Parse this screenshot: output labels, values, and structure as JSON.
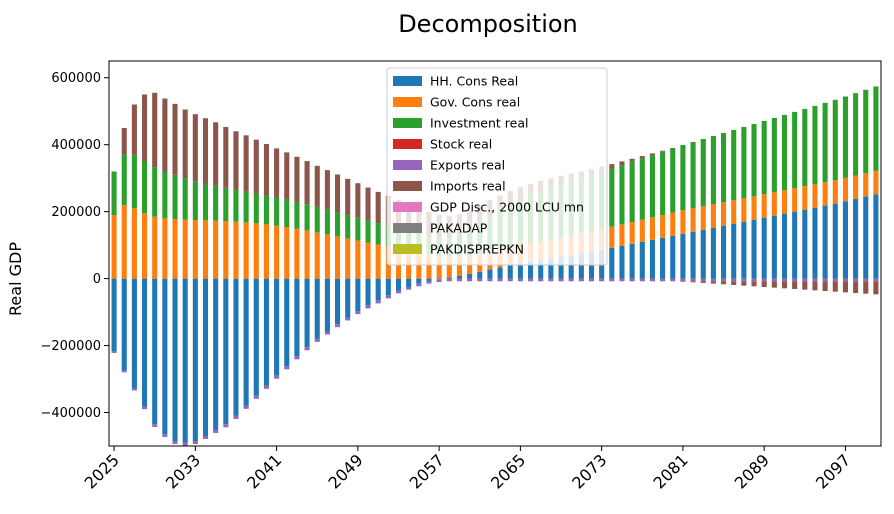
{
  "chart_data": {
    "type": "bar",
    "stacked": true,
    "title": "Decomposition",
    "xlabel": "",
    "ylabel": "Real GDP",
    "ylim": [
      -500000,
      650000
    ],
    "yticks": [
      -400000,
      -200000,
      0,
      200000,
      400000,
      600000
    ],
    "ytick_labels": [
      "−400000",
      "−200000",
      "0",
      "200000",
      "400000",
      "600000"
    ],
    "x_start": 2025,
    "x_end": 2100,
    "xticks": [
      2025,
      2033,
      2041,
      2049,
      2057,
      2065,
      2073,
      2081,
      2089,
      2097
    ],
    "legend_position": "upper-center",
    "series": [
      {
        "name": "HH. Cons Real",
        "color": "#1f77b4",
        "values": [
          -218000,
          -275000,
          -328000,
          -383000,
          -435000,
          -465000,
          -485000,
          -490000,
          -485000,
          -470000,
          -452000,
          -435000,
          -410000,
          -380000,
          -350000,
          -320000,
          -290000,
          -262000,
          -232000,
          -205000,
          -180000,
          -158000,
          -136000,
          -116000,
          -97000,
          -80000,
          -65000,
          -50000,
          -36000,
          -25000,
          -15000,
          -7000,
          -2000,
          3000,
          8000,
          14000,
          20000,
          27000,
          33000,
          39000,
          45000,
          50000,
          55000,
          60000,
          65000,
          70000,
          75000,
          80000,
          86000,
          92000,
          98000,
          104000,
          110000,
          116000,
          122000,
          128000,
          134000,
          140000,
          146000,
          152000,
          158000,
          164000,
          170000,
          176000,
          182000,
          188000,
          194000,
          200000,
          206000,
          212000,
          218000,
          224000,
          231000,
          238000,
          245000,
          252000
        ]
      },
      {
        "name": "Gov. Cons real",
        "color": "#ff7f0e",
        "values": [
          190000,
          220000,
          210000,
          195000,
          185000,
          180000,
          178000,
          176000,
          175000,
          174000,
          173000,
          172000,
          170000,
          168000,
          165000,
          162000,
          158000,
          154000,
          149000,
          144000,
          138000,
          132000,
          126000,
          120000,
          114000,
          108000,
          102000,
          96000,
          90000,
          84000,
          78000,
          72000,
          67000,
          62000,
          58000,
          55000,
          53000,
          52000,
          52000,
          53000,
          54000,
          55000,
          56000,
          57000,
          58000,
          59000,
          60000,
          61000,
          62000,
          63000,
          64000,
          65000,
          66000,
          67000,
          68000,
          69000,
          70000,
          70000,
          70000,
          70000,
          70000,
          70000,
          70000,
          70000,
          70000,
          70000,
          70000,
          70000,
          70000,
          70000,
          70000,
          70000,
          70000,
          70000,
          70000,
          70000
        ]
      },
      {
        "name": "Investment real",
        "color": "#2ca02c",
        "values": [
          130000,
          150000,
          160000,
          155000,
          148000,
          140000,
          132000,
          124000,
          116000,
          110000,
          104000,
          99000,
          95000,
          92000,
          89000,
          86000,
          84000,
          82000,
          80000,
          78000,
          76000,
          74000,
          72000,
          70000,
          68000,
          66000,
          64000,
          62000,
          60000,
          58000,
          56000,
          54000,
          55000,
          58000,
          65000,
          78000,
          92000,
          106000,
          118000,
          128000,
          136000,
          143000,
          149000,
          154000,
          158000,
          162000,
          165000,
          168000,
          171000,
          174000,
          177000,
          180000,
          183000,
          186000,
          189000,
          192000,
          195000,
          198000,
          201000,
          204000,
          207000,
          210000,
          213000,
          216000,
          219000,
          222000,
          225000,
          228000,
          231000,
          234000,
          237000,
          240000,
          243000,
          246000,
          249000,
          252000
        ]
      },
      {
        "name": "Stock real",
        "color": "#d62728",
        "values": [
          0,
          0,
          0,
          0,
          0,
          0,
          0,
          0,
          0,
          0,
          0,
          0,
          0,
          0,
          0,
          0,
          0,
          0,
          0,
          0,
          0,
          0,
          0,
          0,
          0,
          0,
          0,
          0,
          0,
          0,
          0,
          0,
          0,
          0,
          0,
          0,
          0,
          0,
          0,
          0,
          0,
          0,
          0,
          0,
          0,
          0,
          0,
          0,
          0,
          0,
          0,
          0,
          0,
          0,
          0,
          0,
          0,
          0,
          0,
          0,
          0,
          0,
          0,
          0,
          0,
          0,
          0,
          0,
          0,
          0,
          0,
          0,
          0,
          0,
          0,
          0
        ]
      },
      {
        "name": "Exports real",
        "color": "#9467bd",
        "values": [
          -4000,
          -5000,
          -6000,
          -7000,
          -8000,
          -8000,
          -9000,
          -9000,
          -9000,
          -9000,
          -9000,
          -9000,
          -9000,
          -9000,
          -9000,
          -9000,
          -9000,
          -9000,
          -9000,
          -9000,
          -9000,
          -9000,
          -9000,
          -9000,
          -9000,
          -9000,
          -9000,
          -9000,
          -8000,
          -8000,
          -8000,
          -8000,
          -8000,
          -8000,
          -8000,
          -8000,
          -8000,
          -8000,
          -8000,
          -8000,
          -8000,
          -8000,
          -8000,
          -8000,
          -8000,
          -8000,
          -8000,
          -8000,
          -8000,
          -8000,
          -8000,
          -8000,
          -8000,
          -8000,
          -8000,
          -8000,
          -8000,
          -8000,
          -8000,
          -8000,
          -8000,
          -8000,
          -8000,
          -8000,
          -8000,
          -8000,
          -8000,
          -8000,
          -8000,
          -8000,
          -8000,
          -8000,
          -8000,
          -8000,
          -8000,
          -8000
        ]
      },
      {
        "name": "Imports real",
        "color": "#8c564b",
        "values": [
          0,
          80000,
          150000,
          200000,
          222000,
          218000,
          212000,
          205000,
          200000,
          195000,
          190000,
          182000,
          175000,
          168000,
          161000,
          154000,
          147000,
          141000,
          135000,
          129000,
          123000,
          118000,
          113000,
          108000,
          103000,
          98000,
          93000,
          89000,
          85000,
          81000,
          77000,
          73000,
          69000,
          65000,
          61000,
          57000,
          53000,
          49000,
          45000,
          41000,
          38000,
          35000,
          32000,
          29000,
          26000,
          23000,
          20000,
          17000,
          15000,
          13000,
          11000,
          9000,
          7000,
          5000,
          3000,
          1000,
          -1000,
          -3000,
          -5000,
          -7000,
          -9000,
          -11000,
          -13000,
          -15000,
          -17000,
          -19000,
          -21000,
          -23000,
          -25000,
          -27000,
          -29000,
          -31000,
          -33000,
          -35000,
          -37000,
          -39000
        ]
      },
      {
        "name": "GDP Disc., 2000 LCU mn",
        "color": "#e377c2",
        "values": [
          0,
          0,
          0,
          0,
          0,
          0,
          0,
          0,
          0,
          0,
          0,
          0,
          0,
          0,
          0,
          0,
          0,
          0,
          0,
          0,
          0,
          0,
          0,
          0,
          0,
          0,
          0,
          0,
          0,
          0,
          0,
          0,
          0,
          0,
          0,
          0,
          0,
          0,
          0,
          0,
          0,
          0,
          0,
          0,
          0,
          0,
          0,
          0,
          0,
          0,
          0,
          0,
          0,
          0,
          0,
          0,
          0,
          0,
          0,
          0,
          0,
          0,
          0,
          0,
          0,
          0,
          0,
          0,
          0,
          0,
          0,
          0,
          0,
          0,
          0,
          0
        ]
      },
      {
        "name": "PAKADAP",
        "color": "#7f7f7f",
        "values": [
          0,
          0,
          0,
          0,
          0,
          0,
          0,
          0,
          0,
          0,
          0,
          0,
          0,
          0,
          0,
          0,
          0,
          0,
          0,
          0,
          0,
          0,
          0,
          0,
          0,
          0,
          0,
          0,
          0,
          0,
          0,
          0,
          0,
          0,
          0,
          0,
          0,
          0,
          0,
          0,
          0,
          0,
          0,
          0,
          0,
          0,
          0,
          0,
          0,
          0,
          0,
          0,
          0,
          0,
          0,
          0,
          0,
          0,
          0,
          0,
          0,
          0,
          0,
          0,
          0,
          0,
          0,
          0,
          0,
          0,
          0,
          0,
          0,
          0,
          0,
          0
        ]
      },
      {
        "name": "PAKDISPREPKN",
        "color": "#bcbd22",
        "values": [
          0,
          0,
          0,
          0,
          0,
          0,
          0,
          0,
          0,
          0,
          0,
          0,
          0,
          0,
          0,
          0,
          0,
          0,
          0,
          0,
          0,
          0,
          0,
          0,
          0,
          0,
          0,
          0,
          0,
          0,
          0,
          0,
          0,
          0,
          0,
          0,
          0,
          0,
          0,
          0,
          0,
          0,
          0,
          0,
          0,
          0,
          0,
          0,
          0,
          0,
          0,
          0,
          0,
          0,
          0,
          0,
          0,
          0,
          0,
          0,
          0,
          0,
          0,
          0,
          0,
          0,
          0,
          0,
          0,
          0,
          0,
          0,
          0,
          0,
          0,
          0
        ]
      }
    ]
  }
}
